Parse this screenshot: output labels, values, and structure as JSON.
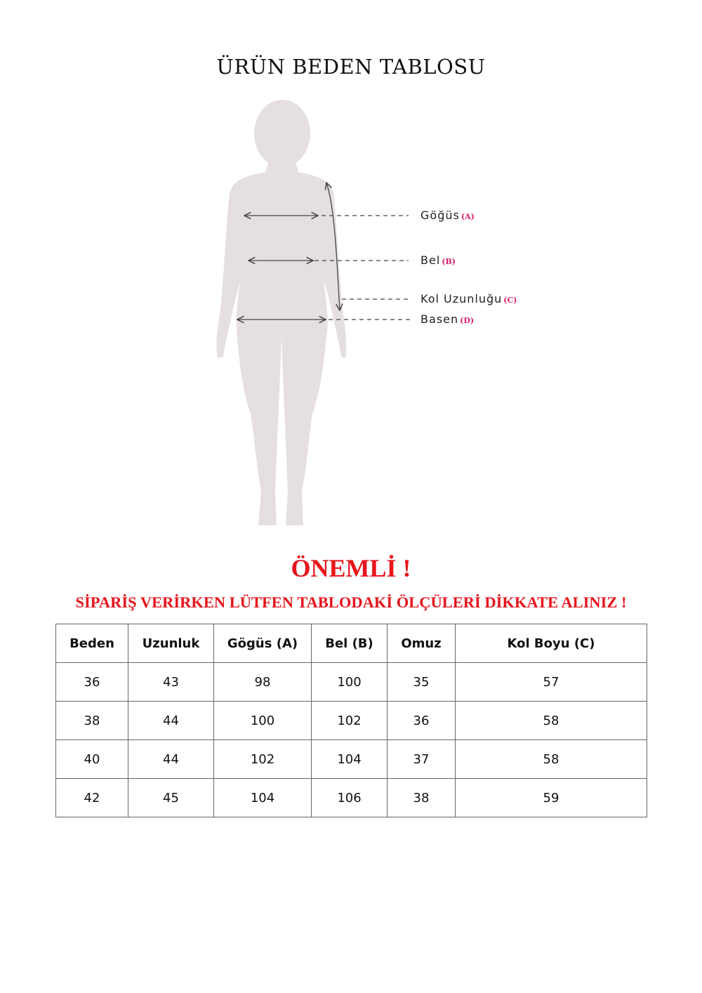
{
  "title": "ÜRÜN BEDEN TABLOSU",
  "diagram": {
    "labels": [
      {
        "text": "Göğüs",
        "code": "(A)"
      },
      {
        "text": "Bel",
        "code": "(B)"
      },
      {
        "text": "Kol Uzunluğu",
        "code": "(C)"
      },
      {
        "text": "Basen",
        "code": "(D)"
      }
    ],
    "colors": {
      "silhouette": "#e6dfe0",
      "code": "#d4206f"
    }
  },
  "notice": {
    "heading": "ÖNEMLİ !",
    "message": "SİPARİŞ VERİRKEN LÜTFEN TABLODAKİ ÖLÇÜLERİ DİKKATE ALINIZ !",
    "color": "#e8141c"
  },
  "table": {
    "headers": [
      "Beden",
      "Uzunluk",
      "Gögüs (A)",
      "Bel (B)",
      "Omuz",
      "Kol Boyu (C)"
    ],
    "rows": [
      [
        "36",
        "43",
        "98",
        "100",
        "35",
        "57"
      ],
      [
        "38",
        "44",
        "100",
        "102",
        "36",
        "58"
      ],
      [
        "40",
        "44",
        "102",
        "104",
        "37",
        "58"
      ],
      [
        "42",
        "45",
        "104",
        "106",
        "38",
        "59"
      ]
    ]
  }
}
